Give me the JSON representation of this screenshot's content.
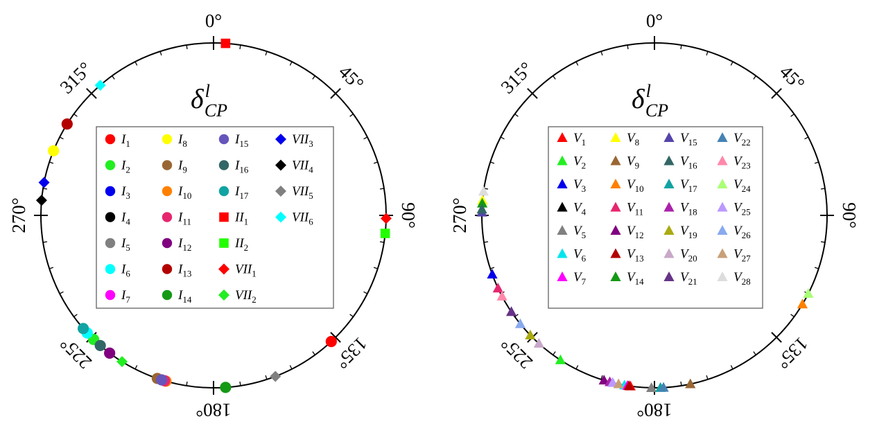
{
  "chart_data": [
    {
      "type": "scatter",
      "polar": true,
      "title": "δ",
      "title_sup": "l",
      "title_sub": "CP",
      "angle_unit": "degrees",
      "angle_ticks": [
        "0°",
        "45°",
        "90°",
        "135°",
        "180°",
        "225°",
        "270°",
        "315°"
      ],
      "legend_placement": "center",
      "series": [
        {
          "name": "I",
          "sub": "1",
          "marker": "circle",
          "color": "#ff0000",
          "angle": 137
        },
        {
          "name": "I",
          "sub": "2",
          "marker": "circle",
          "color": "#22ee22",
          "angle": 224
        },
        {
          "name": "I",
          "sub": "3",
          "marker": "circle",
          "color": "#0000ee",
          "angle": null
        },
        {
          "name": "I",
          "sub": "4",
          "marker": "circle",
          "color": "#000000",
          "angle": null
        },
        {
          "name": "I",
          "sub": "5",
          "marker": "circle",
          "color": "#808080",
          "angle": null
        },
        {
          "name": "I",
          "sub": "6",
          "marker": "circle",
          "color": "#00ffff",
          "angle": 227
        },
        {
          "name": "I",
          "sub": "7",
          "marker": "circle",
          "color": "#ff00ff",
          "angle": null
        },
        {
          "name": "I",
          "sub": "8",
          "marker": "circle",
          "color": "#ffff00",
          "angle": 292
        },
        {
          "name": "I",
          "sub": "9",
          "marker": "circle",
          "color": "#996633",
          "angle": 199
        },
        {
          "name": "I",
          "sub": "10",
          "marker": "circle",
          "color": "#ff8000",
          "angle": 196
        },
        {
          "name": "I",
          "sub": "11",
          "marker": "circle",
          "color": "#e6266e",
          "angle": 196.5
        },
        {
          "name": "I",
          "sub": "12",
          "marker": "circle",
          "color": "#800080",
          "angle": 217
        },
        {
          "name": "I",
          "sub": "13",
          "marker": "circle",
          "color": "#b30000",
          "angle": 302
        },
        {
          "name": "I",
          "sub": "14",
          "marker": "circle",
          "color": "#149914",
          "angle": 176
        },
        {
          "name": "I",
          "sub": "15",
          "marker": "circle",
          "color": "#6655bb",
          "angle": 197.5
        },
        {
          "name": "I",
          "sub": "16",
          "marker": "circle",
          "color": "#336666",
          "angle": 221
        },
        {
          "name": "I",
          "sub": "17",
          "marker": "circle",
          "color": "#11a3a3",
          "angle": 229
        },
        {
          "name": "II",
          "sub": "1",
          "marker": "square",
          "color": "#ff0000",
          "angle": 4
        },
        {
          "name": "II",
          "sub": "2",
          "marker": "square",
          "color": "#22ff00",
          "angle": 96
        },
        {
          "name": "VII",
          "sub": "1",
          "marker": "diamond",
          "color": "#ff0000",
          "angle": 91
        },
        {
          "name": "VII",
          "sub": "2",
          "marker": "diamond",
          "color": "#22ee22",
          "angle": 212
        },
        {
          "name": "VII",
          "sub": "3",
          "marker": "diamond",
          "color": "#0000ee",
          "angle": 281
        },
        {
          "name": "VII",
          "sub": "4",
          "marker": "diamond",
          "color": "#000000",
          "angle": 275
        },
        {
          "name": "VII",
          "sub": "5",
          "marker": "diamond",
          "color": "#808080",
          "angle": 159
        },
        {
          "name": "VII",
          "sub": "6",
          "marker": "diamond",
          "color": "#00ffff",
          "angle": 319
        }
      ]
    },
    {
      "type": "scatter",
      "polar": true,
      "title": "δ",
      "title_sup": "l",
      "title_sub": "CP",
      "angle_unit": "degrees",
      "angle_ticks": [
        "0°",
        "45°",
        "90°",
        "135°",
        "180°",
        "225°",
        "270°",
        "315°"
      ],
      "legend_placement": "center",
      "series": [
        {
          "name": "V",
          "sub": "1",
          "marker": "triangle",
          "color": "#ff0000",
          "angle": 188
        },
        {
          "name": "V",
          "sub": "2",
          "marker": "triangle",
          "color": "#22ee22",
          "angle": 213
        },
        {
          "name": "V",
          "sub": "3",
          "marker": "triangle",
          "color": "#0000ee",
          "angle": 250
        },
        {
          "name": "V",
          "sub": "4",
          "marker": "triangle",
          "color": "#000000",
          "angle": null
        },
        {
          "name": "V",
          "sub": "5",
          "marker": "triangle",
          "color": "#808080",
          "angle": 181
        },
        {
          "name": "V",
          "sub": "6",
          "marker": "triangle",
          "color": "#00e5ee",
          "angle": 190
        },
        {
          "name": "V",
          "sub": "7",
          "marker": "triangle",
          "color": "#ff00ff",
          "angle": 189
        },
        {
          "name": "V",
          "sub": "8",
          "marker": "triangle",
          "color": "#ffff00",
          "angle": 275
        },
        {
          "name": "V",
          "sub": "9",
          "marker": "triangle",
          "color": "#996633",
          "angle": 168
        },
        {
          "name": "V",
          "sub": "10",
          "marker": "triangle",
          "color": "#ff8000",
          "angle": 121
        },
        {
          "name": "V",
          "sub": "11",
          "marker": "triangle",
          "color": "#e6266e",
          "angle": 245
        },
        {
          "name": "V",
          "sub": "12",
          "marker": "triangle",
          "color": "#800080",
          "angle": 197
        },
        {
          "name": "V",
          "sub": "13",
          "marker": "triangle",
          "color": "#b30000",
          "angle": 188.5
        },
        {
          "name": "V",
          "sub": "14",
          "marker": "triangle",
          "color": "#149914",
          "angle": 274
        },
        {
          "name": "V",
          "sub": "15",
          "marker": "triangle",
          "color": "#5544aa",
          "angle": 271
        },
        {
          "name": "V",
          "sub": "16",
          "marker": "triangle",
          "color": "#336666",
          "angle": 272
        },
        {
          "name": "V",
          "sub": "17",
          "marker": "triangle",
          "color": "#11a3a3",
          "angle": 178
        },
        {
          "name": "V",
          "sub": "18",
          "marker": "triangle",
          "color": "#aa22aa",
          "angle": 195
        },
        {
          "name": "V",
          "sub": "19",
          "marker": "triangle",
          "color": "#aaaa11",
          "angle": 226
        },
        {
          "name": "V",
          "sub": "20",
          "marker": "triangle",
          "color": "#c8a8c8",
          "angle": 222
        },
        {
          "name": "V",
          "sub": "21",
          "marker": "triangle",
          "color": "#663388",
          "angle": 236
        },
        {
          "name": "V",
          "sub": "22",
          "marker": "triangle",
          "color": "#4682b4",
          "angle": 177
        },
        {
          "name": "V",
          "sub": "23",
          "marker": "triangle",
          "color": "#ff88aa",
          "angle": 242
        },
        {
          "name": "V",
          "sub": "24",
          "marker": "triangle",
          "color": "#aaff77",
          "angle": 117
        },
        {
          "name": "V",
          "sub": "25",
          "marker": "triangle",
          "color": "#bb99ff",
          "angle": 194
        },
        {
          "name": "V",
          "sub": "26",
          "marker": "triangle",
          "color": "#88aaee",
          "angle": 231
        },
        {
          "name": "V",
          "sub": "27",
          "marker": "triangle",
          "color": "#c8a078",
          "angle": 192
        },
        {
          "name": "V",
          "sub": "28",
          "marker": "triangle",
          "color": "#dddddd",
          "angle": 278
        }
      ]
    }
  ]
}
